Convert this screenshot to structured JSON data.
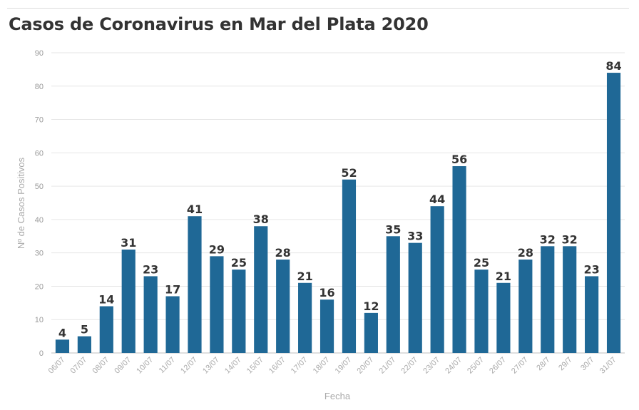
{
  "chart_data": {
    "type": "bar",
    "title": "Casos de Coronavirus en Mar del Plata 2020",
    "xlabel": "Fecha",
    "ylabel": "Nº de Casos Positivos",
    "ylim": [
      0,
      90
    ],
    "yticks": [
      0,
      10,
      20,
      30,
      40,
      50,
      60,
      70,
      80,
      90
    ],
    "grid": true,
    "bar_color": "#1f6896",
    "categories": [
      "06/07",
      "07/07",
      "08/07",
      "09/07",
      "10/07",
      "11/07",
      "12/07",
      "13/07",
      "14/07",
      "15/07",
      "16/07",
      "17/07",
      "18/07",
      "19/07",
      "20/07",
      "21/07",
      "22/07",
      "23/07",
      "24/07",
      "25/07",
      "26/07",
      "27/07",
      "28/7",
      "29/7",
      "30/7",
      "31/07"
    ],
    "values": [
      4,
      5,
      14,
      31,
      23,
      17,
      41,
      29,
      25,
      38,
      28,
      21,
      16,
      52,
      12,
      35,
      33,
      44,
      56,
      25,
      21,
      28,
      32,
      32,
      23,
      84
    ]
  }
}
